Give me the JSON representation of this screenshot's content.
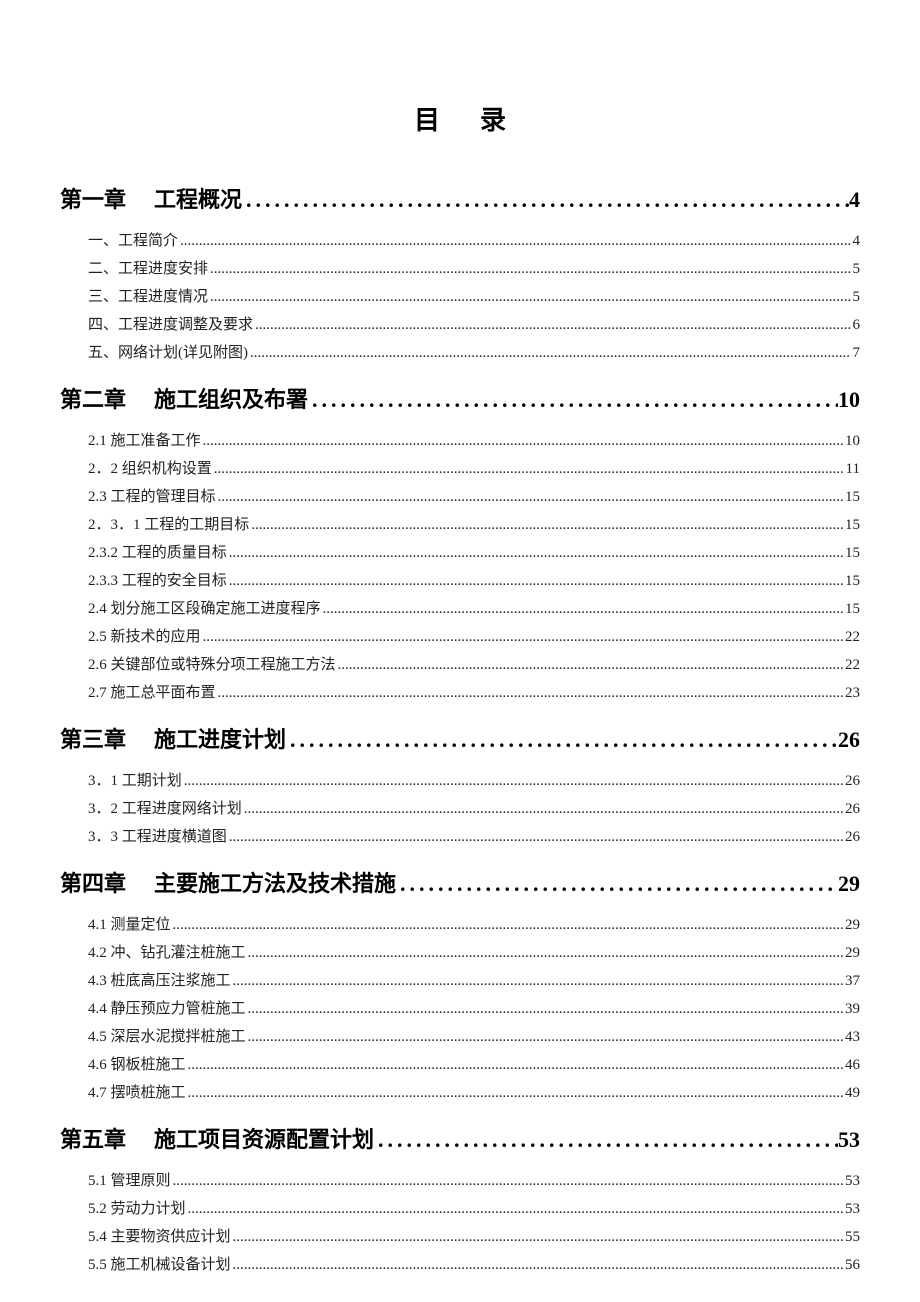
{
  "title": "目录",
  "chapters": [
    {
      "label": "第一章",
      "title": "工程概况",
      "page": "4",
      "sections": [
        {
          "label": "一、工程简介",
          "page": "4"
        },
        {
          "label": "二、工程进度安排",
          "page": "5"
        },
        {
          "label": "三、工程进度情况",
          "page": "5"
        },
        {
          "label": "四、工程进度调整及要求",
          "page": "6"
        },
        {
          "label": "五、网络计划(详见附图)",
          "page": "7"
        }
      ]
    },
    {
      "label": "第二章",
      "title": "施工组织及布署",
      "page": "10",
      "sections": [
        {
          "label": "2.1 施工准备工作",
          "page": "10"
        },
        {
          "label": "2．2 组织机构设置",
          "page": "11"
        },
        {
          "label": "2.3  工程的管理目标",
          "page": "15"
        },
        {
          "label": "2．3．1 工程的工期目标",
          "page": "15"
        },
        {
          "label": "2.3.2  工程的质量目标",
          "page": "15"
        },
        {
          "label": "2.3.3  工程的安全目标",
          "page": "15"
        },
        {
          "label": "2.4 划分施工区段确定施工进度程序",
          "page": "15"
        },
        {
          "label": "2.5 新技术的应用",
          "page": "22"
        },
        {
          "label": "2.6 关键部位或特殊分项工程施工方法",
          "page": "22"
        },
        {
          "label": "2.7 施工总平面布置",
          "page": "23"
        }
      ]
    },
    {
      "label": "第三章",
      "title": "施工进度计划",
      "page": "26",
      "sections": [
        {
          "label": "3．1 工期计划",
          "page": "26"
        },
        {
          "label": "3．2 工程进度网络计划",
          "page": "26"
        },
        {
          "label": "3．3 工程进度横道图",
          "page": "26"
        }
      ]
    },
    {
      "label": "第四章",
      "title": "主要施工方法及技术措施",
      "page": "29",
      "sections": [
        {
          "label": "4.1  测量定位",
          "page": "29"
        },
        {
          "label": "4.2  冲、钻孔灌注桩施工",
          "page": "29"
        },
        {
          "label": "4.3  桩底高压注浆施工",
          "page": "37"
        },
        {
          "label": "4.4  静压预应力管桩施工",
          "page": "39"
        },
        {
          "label": "4.5 深层水泥搅拌桩施工",
          "page": "43"
        },
        {
          "label": "4.6 钢板桩施工",
          "page": "46"
        },
        {
          "label": "4.7  摆喷桩施工",
          "page": "49"
        }
      ]
    },
    {
      "label": "第五章",
      "title": "施工项目资源配置计划",
      "page": "53",
      "sections": [
        {
          "label": "5.1  管理原则",
          "page": "53"
        },
        {
          "label": "5.2  劳动力计划",
          "page": "53"
        },
        {
          "label": "5.4  主要物资供应计划",
          "page": "55"
        },
        {
          "label": "5.5  施工机械设备计划",
          "page": "56"
        }
      ]
    }
  ],
  "colors": {
    "background": "#ffffff",
    "text": "#000000"
  }
}
